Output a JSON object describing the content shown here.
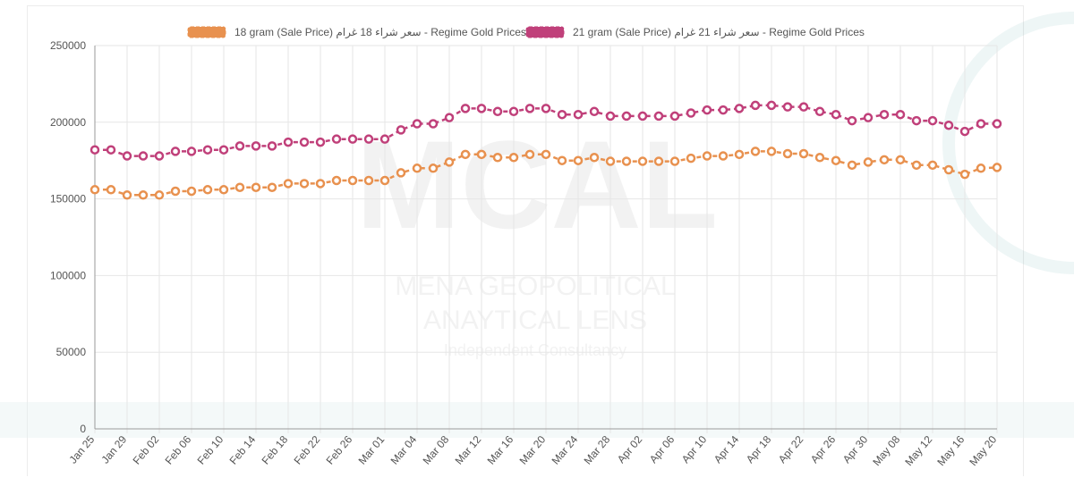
{
  "colors": {
    "series18": "#e8914f",
    "series21": "#c0407a",
    "grid": "#e6e6e6",
    "axis": "#9a9a9a",
    "tick": "#555555"
  },
  "chart_data": {
    "type": "line",
    "title": "",
    "xlabel": "",
    "ylabel": "",
    "ylim": [
      0,
      250000
    ],
    "yticks": [
      0,
      50000,
      100000,
      150000,
      200000,
      250000
    ],
    "ytick_labels": [
      "0",
      "50000",
      "100000",
      "150000",
      "200000",
      "250000"
    ],
    "grid": true,
    "legend_position": "top",
    "xtick_labels": [
      "Jan 25",
      "Jan 29",
      "Feb 02",
      "Feb 06",
      "Feb 10",
      "Feb 14",
      "Feb 18",
      "Feb 22",
      "Feb 26",
      "Mar 01",
      "Mar 04",
      "Mar 08",
      "Mar 12",
      "Mar 16",
      "Mar 20",
      "Mar 24",
      "Mar 28",
      "Apr 02",
      "Apr 06",
      "Apr 10",
      "Apr 14",
      "Apr 18",
      "Apr 22",
      "Apr 26",
      "Apr 30",
      "May 08",
      "May 12",
      "May 16",
      "May 20"
    ],
    "series": [
      {
        "name": "18 gram (Sale Price) سعر شراء 18 غرام - Regime Gold Prices",
        "color": "#e8914f",
        "values": [
          156000,
          156000,
          152500,
          152500,
          152500,
          155000,
          155000,
          156000,
          156000,
          157500,
          157500,
          157500,
          160000,
          160000,
          160000,
          162000,
          162000,
          162000,
          162000,
          167000,
          170000,
          170000,
          174000,
          179000,
          179000,
          177000,
          177000,
          179000,
          179000,
          175000,
          175000,
          177000,
          174500,
          174500,
          174500,
          174500,
          174500,
          176500,
          178000,
          178000,
          179000,
          181000,
          181000,
          179500,
          179500,
          177000,
          175000,
          172000,
          174000,
          175500,
          175500,
          172000,
          172000,
          169000,
          166000,
          170000,
          170500
        ]
      },
      {
        "name": "21 gram (Sale Price) سعر شراء 21 غرام - Regime Gold Prices",
        "color": "#c0407a",
        "values": [
          182000,
          182000,
          178000,
          178000,
          178000,
          181000,
          181000,
          182000,
          182000,
          184500,
          184500,
          184500,
          187000,
          187000,
          187000,
          189000,
          189000,
          189000,
          189000,
          195000,
          199000,
          199000,
          203000,
          209000,
          209000,
          207000,
          207000,
          209000,
          209000,
          205000,
          205000,
          207000,
          204000,
          204000,
          204000,
          204000,
          204000,
          206000,
          208000,
          208000,
          209000,
          211000,
          211000,
          210000,
          210000,
          207000,
          205000,
          201000,
          203000,
          205000,
          205000,
          201000,
          201000,
          198000,
          194000,
          199000,
          199000
        ]
      }
    ]
  },
  "watermark": {
    "logo_text": "MCAL",
    "line1": "MENA GEOPOLITICAL",
    "line2": "ANAYTICAL LENS",
    "line3": "Independent Consultancy"
  }
}
